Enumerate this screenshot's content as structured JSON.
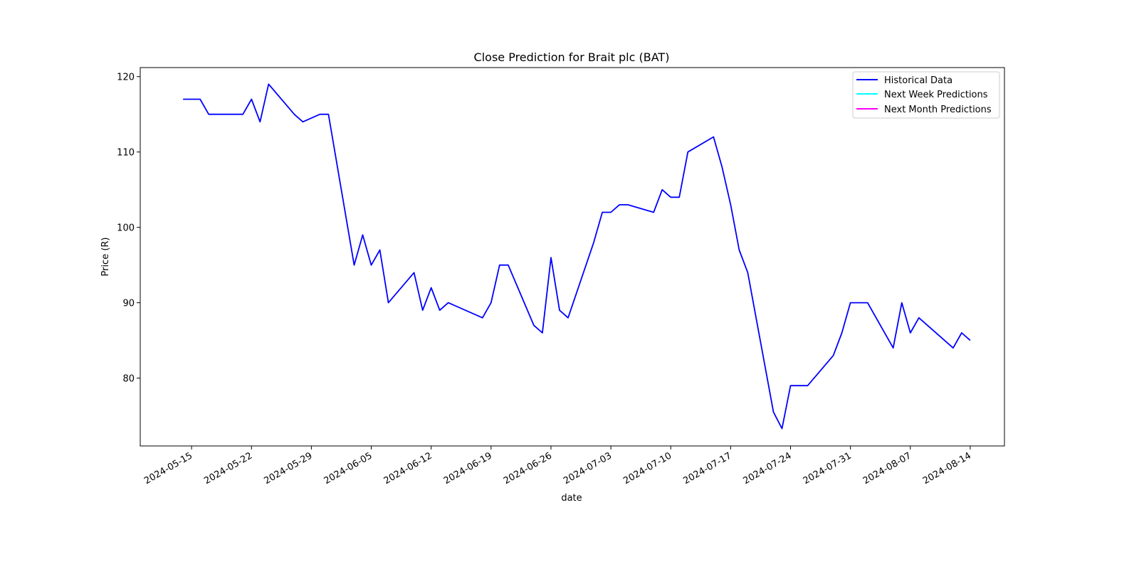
{
  "colors": {
    "historical": "#0000ff",
    "next_week": "#00ffff",
    "next_month": "#ff00ff"
  },
  "chart_data": {
    "type": "line",
    "title": "Close Prediction for Brait plc (BAT)",
    "xlabel": "date",
    "ylabel": "Price (R)",
    "x_axis_type": "date",
    "xlim": [
      "2024-05-09",
      "2024-08-18"
    ],
    "ylim": [
      71,
      121.2
    ],
    "xticks": [
      "2024-05-15",
      "2024-05-22",
      "2024-05-29",
      "2024-06-05",
      "2024-06-12",
      "2024-06-19",
      "2024-06-26",
      "2024-07-03",
      "2024-07-10",
      "2024-07-17",
      "2024-07-24",
      "2024-07-31",
      "2024-08-07",
      "2024-08-14"
    ],
    "yticks": [
      "80",
      "90",
      "100",
      "110",
      "120"
    ],
    "legend_position": "top-right",
    "grid": false,
    "series": [
      {
        "name": "Historical Data",
        "color": "#0000ff",
        "x": [
          "2024-05-14",
          "2024-05-15",
          "2024-05-16",
          "2024-05-17",
          "2024-05-20",
          "2024-05-21",
          "2024-05-22",
          "2024-05-23",
          "2024-05-24",
          "2024-05-27",
          "2024-05-28",
          "2024-05-30",
          "2024-05-31",
          "2024-06-03",
          "2024-06-04",
          "2024-06-05",
          "2024-06-06",
          "2024-06-07",
          "2024-06-10",
          "2024-06-11",
          "2024-06-12",
          "2024-06-13",
          "2024-06-14",
          "2024-06-18",
          "2024-06-19",
          "2024-06-20",
          "2024-06-21",
          "2024-06-24",
          "2024-06-25",
          "2024-06-26",
          "2024-06-27",
          "2024-06-28",
          "2024-07-01",
          "2024-07-02",
          "2024-07-03",
          "2024-07-04",
          "2024-07-05",
          "2024-07-08",
          "2024-07-09",
          "2024-07-10",
          "2024-07-11",
          "2024-07-12",
          "2024-07-15",
          "2024-07-16",
          "2024-07-17",
          "2024-07-18",
          "2024-07-19",
          "2024-07-22",
          "2024-07-23",
          "2024-07-24",
          "2024-07-26",
          "2024-07-29",
          "2024-07-30",
          "2024-07-31",
          "2024-08-01",
          "2024-08-02",
          "2024-08-05",
          "2024-08-06",
          "2024-08-07",
          "2024-08-08",
          "2024-08-12",
          "2024-08-13",
          "2024-08-14"
        ],
        "values": [
          117,
          117,
          117,
          115,
          115,
          115,
          117,
          114,
          119,
          115,
          114,
          115,
          115,
          95,
          99,
          95,
          97,
          90,
          94,
          89,
          92,
          89,
          90,
          88,
          90,
          95,
          95,
          87,
          86,
          96,
          89,
          88,
          98,
          102,
          102,
          103,
          103,
          102,
          105,
          104,
          104,
          110,
          112,
          108,
          103,
          97,
          94,
          75.5,
          73.3,
          79,
          79,
          83,
          86,
          90,
          90,
          90,
          84,
          90,
          86,
          88,
          84,
          86,
          85
        ]
      },
      {
        "name": "Next Week Predictions",
        "color": "#00ffff",
        "x": [],
        "values": []
      },
      {
        "name": "Next Month Predictions",
        "color": "#ff00ff",
        "x": [],
        "values": []
      }
    ]
  }
}
